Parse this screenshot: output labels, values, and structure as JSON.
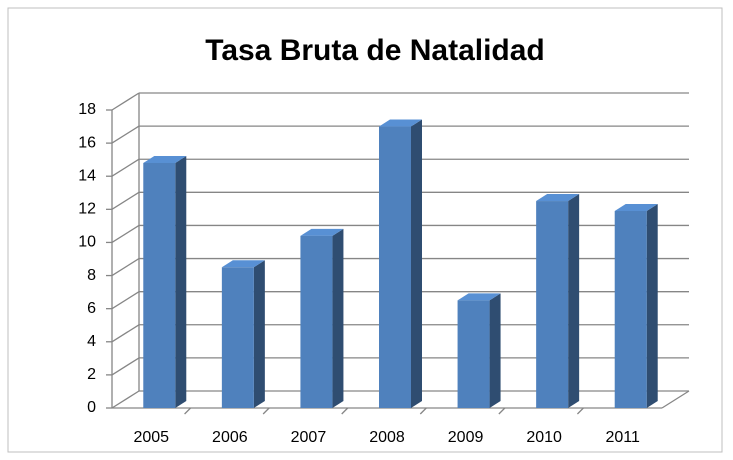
{
  "chart_data": {
    "type": "bar",
    "title": "Tasa Bruta de Natalidad",
    "categories": [
      "2005",
      "2006",
      "2007",
      "2008",
      "2009",
      "2010",
      "2011"
    ],
    "values": [
      14.8,
      8.5,
      10.4,
      17,
      6.5,
      12.5,
      11.9
    ],
    "color": "#4f81bd",
    "ylim": [
      0,
      18
    ],
    "yticks": [
      0,
      2,
      4,
      6,
      8,
      10,
      12,
      14,
      16,
      18
    ],
    "grid": true
  }
}
